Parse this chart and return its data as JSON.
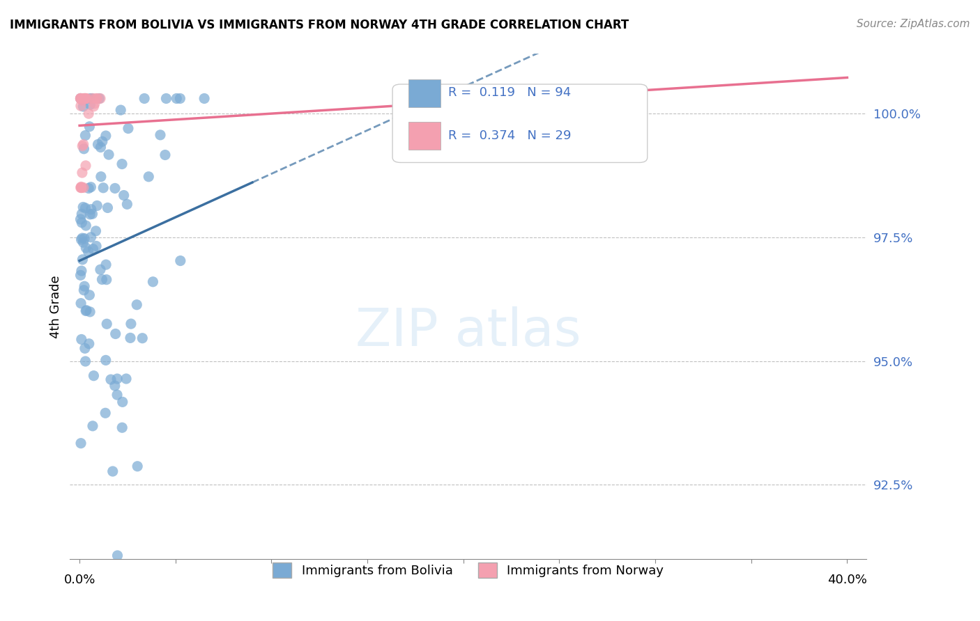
{
  "title": "IMMIGRANTS FROM BOLIVIA VS IMMIGRANTS FROM NORWAY 4TH GRADE CORRELATION CHART",
  "source": "Source: ZipAtlas.com",
  "ylabel": "4th Grade",
  "ylim": [
    91.0,
    101.2
  ],
  "xlim": [
    -0.5,
    41.0
  ],
  "yticks": [
    92.5,
    95.0,
    97.5,
    100.0
  ],
  "ytick_labels": [
    "92.5%",
    "95.0%",
    "97.5%",
    "100.0%"
  ],
  "bolivia_color": "#7aaad4",
  "norway_color": "#f4a0b0",
  "trend_bolivia_color": "#3b6fa0",
  "trend_norway_color": "#e87090",
  "R_bolivia": 0.119,
  "N_bolivia": 94,
  "R_norway": 0.374,
  "N_norway": 29,
  "legend_bolivia": "Immigrants from Bolivia",
  "legend_norway": "Immigrants from Norway"
}
